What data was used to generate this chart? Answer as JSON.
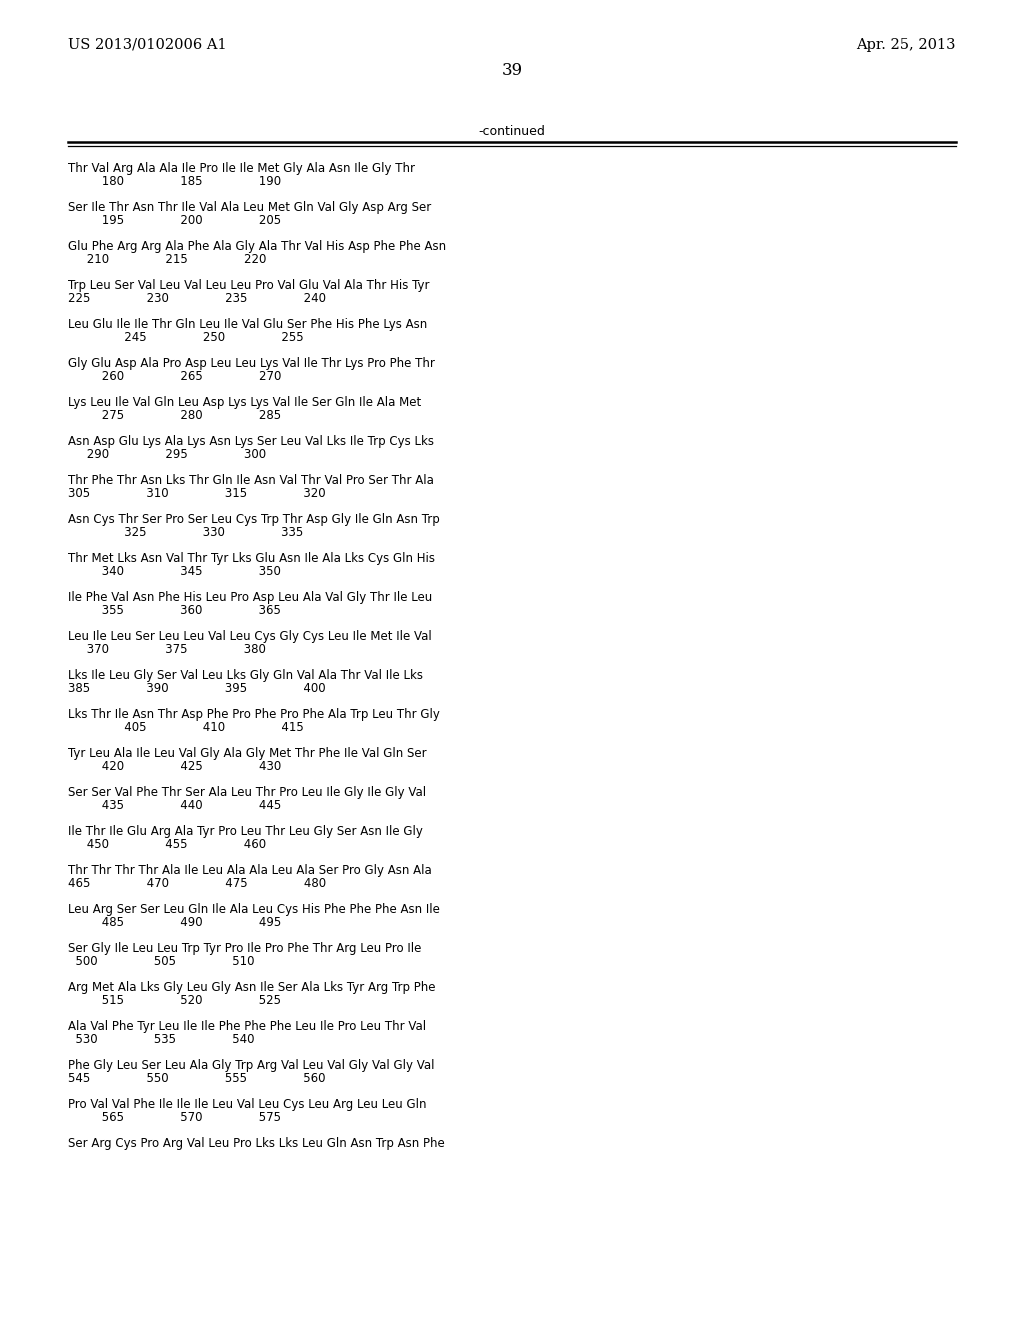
{
  "header_left": "US 2013/0102006 A1",
  "header_right": "Apr. 25, 2013",
  "page_number": "39",
  "continued_text": "-continued",
  "background_color": "#ffffff",
  "text_color": "#000000",
  "sequence_blocks": [
    [
      "Thr Val Arg Ala Ala Ile Pro Ile Ile Met Gly Ala Asn Ile Gly Thr",
      "         180               185               190"
    ],
    [
      "Ser Ile Thr Asn Thr Ile Val Ala Leu Met Gln Val Gly Asp Arg Ser",
      "         195               200               205"
    ],
    [
      "Glu Phe Arg Arg Ala Phe Ala Gly Ala Thr Val His Asp Phe Phe Asn",
      "     210               215               220"
    ],
    [
      "Trp Leu Ser Val Leu Val Leu Leu Pro Val Glu Val Ala Thr His Tyr",
      "225               230               235               240"
    ],
    [
      "Leu Glu Ile Ile Thr Gln Leu Ile Val Glu Ser Phe His Phe Lys Asn",
      "               245               250               255"
    ],
    [
      "Gly Glu Asp Ala Pro Asp Leu Leu Lys Val Ile Thr Lys Pro Phe Thr",
      "         260               265               270"
    ],
    [
      "Lys Leu Ile Val Gln Leu Asp Lys Lys Val Ile Ser Gln Ile Ala Met",
      "         275               280               285"
    ],
    [
      "Asn Asp Glu Lys Ala Lys Asn Lys Ser Leu Val Lks Ile Trp Cys Lks",
      "     290               295               300"
    ],
    [
      "Thr Phe Thr Asn Lks Thr Gln Ile Asn Val Thr Val Pro Ser Thr Ala",
      "305               310               315               320"
    ],
    [
      "Asn Cys Thr Ser Pro Ser Leu Cys Trp Thr Asp Gly Ile Gln Asn Trp",
      "               325               330               335"
    ],
    [
      "Thr Met Lks Asn Val Thr Tyr Lks Glu Asn Ile Ala Lks Cys Gln His",
      "         340               345               350"
    ],
    [
      "Ile Phe Val Asn Phe His Leu Pro Asp Leu Ala Val Gly Thr Ile Leu",
      "         355               360               365"
    ],
    [
      "Leu Ile Leu Ser Leu Leu Val Leu Cys Gly Cys Leu Ile Met Ile Val",
      "     370               375               380"
    ],
    [
      "Lks Ile Leu Gly Ser Val Leu Lks Gly Gln Val Ala Thr Val Ile Lks",
      "385               390               395               400"
    ],
    [
      "Lks Thr Ile Asn Thr Asp Phe Pro Phe Pro Phe Ala Trp Leu Thr Gly",
      "               405               410               415"
    ],
    [
      "Tyr Leu Ala Ile Leu Val Gly Ala Gly Met Thr Phe Ile Val Gln Ser",
      "         420               425               430"
    ],
    [
      "Ser Ser Val Phe Thr Ser Ala Leu Thr Pro Leu Ile Gly Ile Gly Val",
      "         435               440               445"
    ],
    [
      "Ile Thr Ile Glu Arg Ala Tyr Pro Leu Thr Leu Gly Ser Asn Ile Gly",
      "     450               455               460"
    ],
    [
      "Thr Thr Thr Thr Ala Ile Leu Ala Ala Leu Ala Ser Pro Gly Asn Ala",
      "465               470               475               480"
    ],
    [
      "Leu Arg Ser Ser Leu Gln Ile Ala Leu Cys His Phe Phe Phe Asn Ile",
      "         485               490               495"
    ],
    [
      "Ser Gly Ile Leu Leu Trp Tyr Pro Ile Pro Phe Thr Arg Leu Pro Ile",
      "  500               505               510"
    ],
    [
      "Arg Met Ala Lks Gly Leu Gly Asn Ile Ser Ala Lks Tyr Arg Trp Phe",
      "         515               520               525"
    ],
    [
      "Ala Val Phe Tyr Leu Ile Ile Phe Phe Phe Leu Ile Pro Leu Thr Val",
      "  530               535               540"
    ],
    [
      "Phe Gly Leu Ser Leu Ala Gly Trp Arg Val Leu Val Gly Val Gly Val",
      "545               550               555               560"
    ],
    [
      "Pro Val Val Phe Ile Ile Ile Leu Val Leu Cys Leu Arg Leu Leu Gln",
      "         565               570               575"
    ],
    [
      "Ser Arg Cys Pro Arg Val Leu Pro Lks Lks Leu Gln Asn Trp Asn Phe",
      ""
    ]
  ]
}
